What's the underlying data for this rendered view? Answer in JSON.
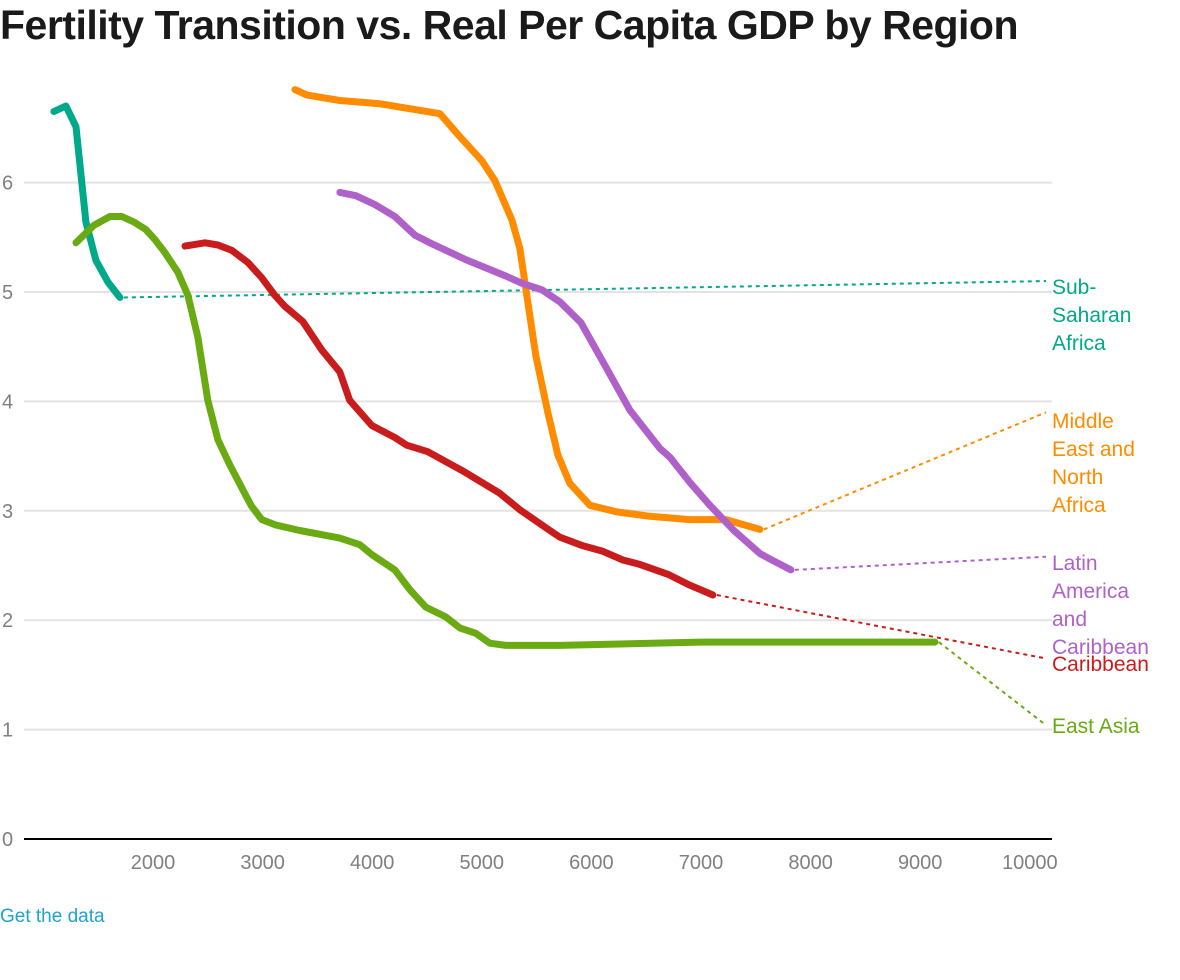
{
  "page": {
    "get_data_link": "Get the data"
  },
  "chart_data": {
    "type": "line",
    "title": "Fertility Transition vs. Real Per Capita GDP by Region",
    "xlabel": "",
    "ylabel": "",
    "xlim": [
      1000,
      10000
    ],
    "ylim": [
      0,
      7
    ],
    "xticks": [
      2000,
      3000,
      4000,
      5000,
      6000,
      7000,
      8000,
      9000,
      10000
    ],
    "yticks": [
      0,
      1,
      2,
      3,
      4,
      5,
      6
    ],
    "grid": true,
    "legend": "direct labels at right",
    "series": [
      {
        "name": "Sub-Saharan Africa",
        "label_lines": [
          "Sub-",
          "Saharan",
          "Africa"
        ],
        "color": "#00a98a",
        "label_anchor_y": 5.1,
        "points": [
          [
            1096,
            6.65
          ],
          [
            1205,
            6.7
          ],
          [
            1297,
            6.51
          ],
          [
            1388,
            5.64
          ],
          [
            1479,
            5.29
          ],
          [
            1589,
            5.09
          ],
          [
            1698,
            4.95
          ]
        ]
      },
      {
        "name": "Middle East and North Africa",
        "label_lines": [
          "Middle",
          "East and",
          "North",
          "Africa"
        ],
        "color": "#ff8c00",
        "label_anchor_y": 3.9,
        "points": [
          [
            3296,
            6.85
          ],
          [
            3404,
            6.8
          ],
          [
            3705,
            6.75
          ],
          [
            4070,
            6.72
          ],
          [
            4618,
            6.63
          ],
          [
            4800,
            6.42
          ],
          [
            5000,
            6.2
          ],
          [
            5119,
            6.02
          ],
          [
            5274,
            5.66
          ],
          [
            5347,
            5.4
          ],
          [
            5493,
            4.42
          ],
          [
            5602,
            3.9
          ],
          [
            5694,
            3.51
          ],
          [
            5803,
            3.25
          ],
          [
            5986,
            3.05
          ],
          [
            6232,
            2.99
          ],
          [
            6533,
            2.95
          ],
          [
            6898,
            2.92
          ],
          [
            7226,
            2.92
          ],
          [
            7537,
            2.83
          ]
        ]
      },
      {
        "name": "Latin America and Caribbean",
        "label_lines": [
          "Latin",
          "America",
          "and",
          "Caribbean"
        ],
        "color": "#b061c9",
        "label_anchor_y": 2.58,
        "points": [
          [
            3705,
            5.91
          ],
          [
            3851,
            5.88
          ],
          [
            4024,
            5.8
          ],
          [
            4206,
            5.69
          ],
          [
            4389,
            5.52
          ],
          [
            4526,
            5.45
          ],
          [
            4845,
            5.3
          ],
          [
            5210,
            5.15
          ],
          [
            5365,
            5.08
          ],
          [
            5548,
            5.02
          ],
          [
            5712,
            4.91
          ],
          [
            5904,
            4.72
          ],
          [
            6123,
            4.33
          ],
          [
            6351,
            3.92
          ],
          [
            6625,
            3.57
          ],
          [
            6716,
            3.49
          ],
          [
            6899,
            3.26
          ],
          [
            7081,
            3.05
          ],
          [
            7300,
            2.82
          ],
          [
            7537,
            2.61
          ],
          [
            7628,
            2.56
          ],
          [
            7820,
            2.46
          ]
        ]
      },
      {
        "name": "Caribbean",
        "label_lines": [
          "Caribbean"
        ],
        "color": "#c91d1d",
        "label_anchor_y": 1.65,
        "points": [
          [
            2292,
            5.42
          ],
          [
            2474,
            5.45
          ],
          [
            2592,
            5.43
          ],
          [
            2720,
            5.38
          ],
          [
            2866,
            5.27
          ],
          [
            2993,
            5.13
          ],
          [
            3111,
            4.97
          ],
          [
            3202,
            4.87
          ],
          [
            3367,
            4.73
          ],
          [
            3540,
            4.47
          ],
          [
            3704,
            4.27
          ],
          [
            3795,
            4.01
          ],
          [
            3996,
            3.78
          ],
          [
            4206,
            3.67
          ],
          [
            4315,
            3.6
          ],
          [
            4507,
            3.54
          ],
          [
            4726,
            3.42
          ],
          [
            4817,
            3.37
          ],
          [
            5164,
            3.16
          ],
          [
            5347,
            3.01
          ],
          [
            5621,
            2.82
          ],
          [
            5712,
            2.76
          ],
          [
            5922,
            2.68
          ],
          [
            6104,
            2.63
          ],
          [
            6287,
            2.55
          ],
          [
            6442,
            2.51
          ],
          [
            6698,
            2.42
          ],
          [
            6899,
            2.32
          ],
          [
            7109,
            2.23
          ]
        ]
      },
      {
        "name": "East Asia",
        "label_lines": [
          "East Asia"
        ],
        "color": "#6aaa12",
        "label_anchor_y": 1.04,
        "points": [
          [
            1297,
            5.45
          ],
          [
            1461,
            5.61
          ],
          [
            1607,
            5.69
          ],
          [
            1716,
            5.69
          ],
          [
            1826,
            5.64
          ],
          [
            1935,
            5.57
          ],
          [
            2017,
            5.48
          ],
          [
            2109,
            5.36
          ],
          [
            2227,
            5.18
          ],
          [
            2318,
            4.97
          ],
          [
            2409,
            4.59
          ],
          [
            2500,
            4.01
          ],
          [
            2592,
            3.65
          ],
          [
            2701,
            3.42
          ],
          [
            2847,
            3.14
          ],
          [
            2901,
            3.04
          ],
          [
            2993,
            2.92
          ],
          [
            3120,
            2.87
          ],
          [
            3339,
            2.82
          ],
          [
            3704,
            2.75
          ],
          [
            3887,
            2.69
          ],
          [
            3996,
            2.6
          ],
          [
            4206,
            2.46
          ],
          [
            4343,
            2.28
          ],
          [
            4489,
            2.12
          ],
          [
            4671,
            2.03
          ],
          [
            4799,
            1.93
          ],
          [
            4945,
            1.88
          ],
          [
            5073,
            1.79
          ],
          [
            5219,
            1.77
          ],
          [
            5530,
            1.77
          ],
          [
            5712,
            1.77
          ],
          [
            6990,
            1.8
          ],
          [
            9134,
            1.8
          ]
        ]
      }
    ]
  }
}
